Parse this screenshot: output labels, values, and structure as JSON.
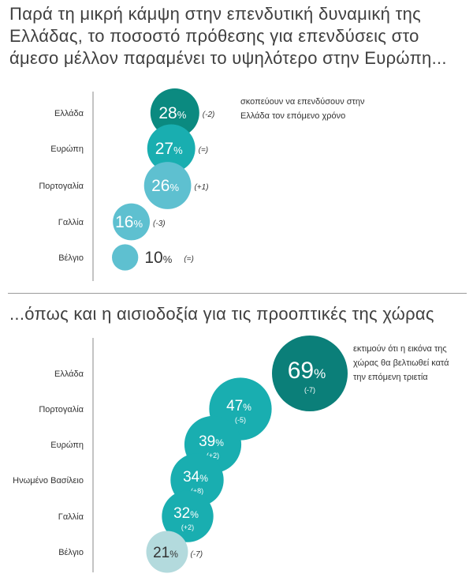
{
  "title1": "Παρά τη μικρή κάμψη στην επενδυτική δυναμική της Ελλάδας, το ποσοστό πρόθεσης για επενδύσεις στο άμεσο μέλλον παραμένει το υψηλότερο στην Ευρώπη...",
  "title2": "...όπως και η αισιοδοξία για τις προοπτικές της χώρας",
  "chart_data": [
    {
      "type": "scatter",
      "categories": [
        "Ελλάδα",
        "Ευρώπη",
        "Πορτογαλία",
        "Γαλλία",
        "Βέλγιο"
      ],
      "values": [
        28,
        27,
        26,
        16,
        10
      ],
      "changes": [
        "(-2)",
        "(=)",
        "(+1)",
        "(-3)",
        "(=)"
      ],
      "annotation": [
        "σκοπεύουν να επενδύσουν στην",
        "Ελλάδα τον επόμενο χρόνο"
      ],
      "colors": [
        "#0b8a80",
        "#19aeb0",
        "#5ec0d0",
        "#5ec0d0",
        "#5ec0d0"
      ],
      "label_inside": [
        true,
        true,
        true,
        true,
        false
      ]
    },
    {
      "type": "scatter",
      "categories": [
        "Ελλάδα",
        "Πορτογαλία",
        "Ευρώπη",
        "Ηνωμένο Βασίλειο",
        "Γαλλία",
        "Βέλγιο"
      ],
      "values": [
        69,
        47,
        39,
        34,
        32,
        21
      ],
      "changes": [
        "(-7)",
        "(-5)",
        "(+2)",
        "(+8)",
        "(+2)",
        "(-7)"
      ],
      "annotation": [
        "εκτιμούν ότι η εικόνα της",
        "χώρας θα βελτιωθεί κατά",
        "την επόμενη τριετία"
      ],
      "colors": [
        "#0b7f79",
        "#19aeb0",
        "#19aeb0",
        "#19aeb0",
        "#19aeb0",
        "#b3dadd"
      ],
      "text_colors": [
        "#ffffff",
        "#ffffff",
        "#ffffff",
        "#ffffff",
        "#ffffff",
        "#333333"
      ],
      "change_inside": [
        true,
        true,
        true,
        true,
        true,
        false
      ]
    }
  ]
}
